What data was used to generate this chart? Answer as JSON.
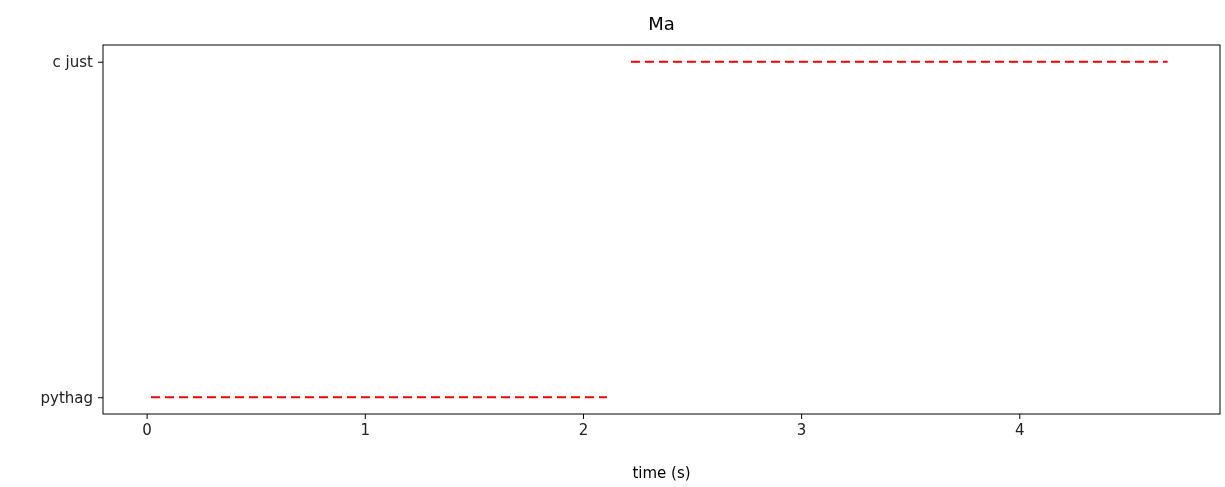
{
  "chart_data": {
    "type": "bar",
    "orientation": "horizontal",
    "title": "Ma",
    "xlabel": "time (s)",
    "categories": [
      "c just",
      "pythag"
    ],
    "xlim": [
      -0.2,
      4.92
    ],
    "xticks": [
      0,
      1,
      2,
      3,
      4
    ],
    "base": [
      2.22,
      0.02
    ],
    "values": [
      2.46,
      2.09
    ],
    "color": "#ff0000",
    "line_style": "dashed",
    "grid": false
  }
}
